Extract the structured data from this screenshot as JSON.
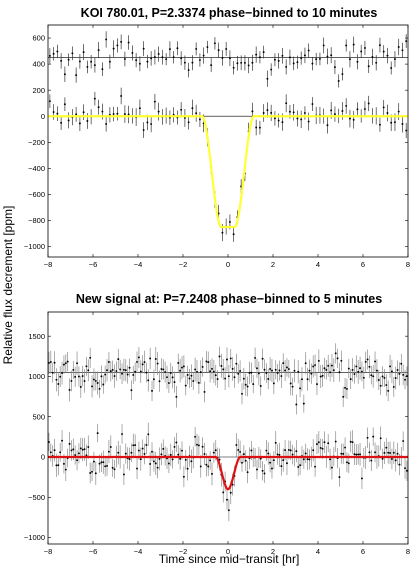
{
  "figure": {
    "ylabel": "Relative flux decrement [ppm]",
    "xlabel": "Time since mid−transit [hr]"
  },
  "chart_data": [
    {
      "type": "scatter",
      "title": "KOI 780.01, P=2.3374 phase−binned to 10 minutes",
      "xlabel": "Time since mid−transit [hr]",
      "ylabel": "Relative flux decrement [ppm]",
      "xlim": [
        -8,
        8
      ],
      "ylim": [
        -1080,
        700
      ],
      "xticks": [
        -8,
        -6,
        -4,
        -2,
        0,
        2,
        4,
        6,
        8
      ],
      "yticks": [
        600,
        400,
        200,
        0,
        -200,
        -400,
        -600,
        -800,
        -1000
      ],
      "bin_width_hr": 0.1667,
      "series": [
        {
          "kind": "offset_residuals_errorbars",
          "color": "#000000",
          "baseline": 450,
          "noise_rms": 60,
          "error": 55
        },
        {
          "kind": "data_errorbars",
          "color": "#000000",
          "baseline": 0,
          "noise_rms": 55,
          "error": 60
        },
        {
          "kind": "transit_model",
          "color": "#ffff33",
          "depth": 850,
          "t_flat_half": 0.3,
          "t_total_half": 1.15
        }
      ],
      "reference_lines": [
        450,
        0
      ],
      "grid": false,
      "legend": "none"
    },
    {
      "type": "scatter",
      "title": "New signal at: P=7.2408 phase−binned to 5 minutes",
      "xlabel": "Time since mid−transit [hr]",
      "ylabel": "Relative flux decrement [ppm]",
      "xlim": [
        -8,
        8
      ],
      "ylim": [
        -1080,
        1800
      ],
      "xticks": [
        -8,
        -6,
        -4,
        -2,
        0,
        2,
        4,
        6,
        8
      ],
      "yticks": [
        1500,
        1000,
        500,
        0,
        -500,
        -1000
      ],
      "bin_width_hr": 0.0833,
      "series": [
        {
          "kind": "offset_residuals_errorbars",
          "color": "#000000",
          "baseline": 1050,
          "noise_rms": 120,
          "error": 130
        },
        {
          "kind": "data_errorbars",
          "color": "#000000",
          "baseline": 0,
          "noise_rms": 120,
          "error": 130
        },
        {
          "kind": "transit_model",
          "color": "#dd1111",
          "depth": 400,
          "t_flat_half": 0.0,
          "t_total_half": 0.55
        }
      ],
      "reference_lines": [
        1050,
        0
      ],
      "grid": false,
      "legend": "none"
    }
  ]
}
